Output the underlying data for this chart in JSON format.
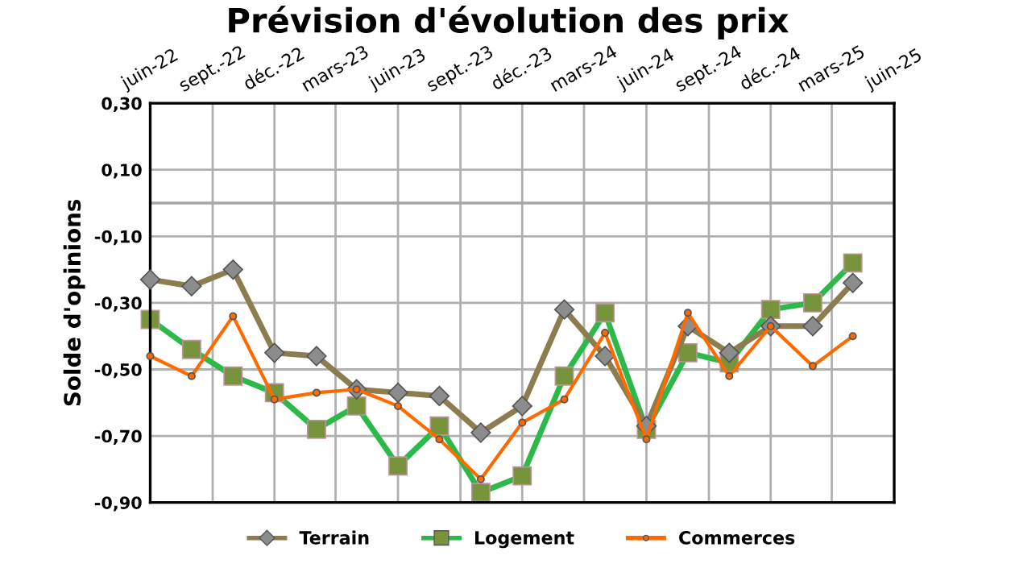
{
  "chart_data": {
    "type": "line",
    "title": "Prévision d'évolution des prix",
    "ylabel": "Solde d'opinions",
    "x": [
      "2022-06",
      "2022-08",
      "2022-10",
      "2022-12",
      "2023-02",
      "2023-04",
      "2023-06",
      "2023-08",
      "2023-10",
      "2023-12",
      "2024-02",
      "2024-04",
      "2024-06",
      "2024-08",
      "2024-10",
      "2024-12",
      "2025-02",
      "2025-04"
    ],
    "series": [
      {
        "name": "Terrain",
        "color": "#8b7d4f",
        "marker": "diamond",
        "values": [
          -0.23,
          -0.25,
          -0.2,
          -0.45,
          -0.46,
          -0.56,
          -0.57,
          -0.58,
          -0.69,
          -0.61,
          -0.32,
          -0.46,
          -0.67,
          -0.37,
          -0.45,
          -0.37,
          -0.37,
          -0.24
        ]
      },
      {
        "name": "Logement",
        "color": "#2db84a",
        "marker": "square",
        "values": [
          -0.35,
          -0.44,
          -0.52,
          -0.57,
          -0.68,
          -0.61,
          -0.79,
          -0.67,
          -0.87,
          -0.82,
          -0.52,
          -0.33,
          -0.68,
          -0.45,
          -0.48,
          -0.32,
          -0.3,
          -0.18
        ]
      },
      {
        "name": "Commerces",
        "color": "#ff6a00",
        "marker": "circle",
        "values": [
          -0.46,
          -0.52,
          -0.34,
          -0.59,
          -0.57,
          -0.56,
          -0.61,
          -0.71,
          -0.83,
          -0.66,
          -0.59,
          -0.39,
          -0.71,
          -0.33,
          -0.52,
          -0.37,
          -0.49,
          -0.4
        ]
      }
    ],
    "xlim": [
      "2022-06",
      "2025-06"
    ],
    "xticks": [
      {
        "value": "2022-06",
        "label": "juin-22"
      },
      {
        "value": "2022-09",
        "label": "sept.-22"
      },
      {
        "value": "2022-12",
        "label": "déc.-22"
      },
      {
        "value": "2023-03",
        "label": "mars-23"
      },
      {
        "value": "2023-06",
        "label": "juin-23"
      },
      {
        "value": "2023-09",
        "label": "sept.-23"
      },
      {
        "value": "2023-12",
        "label": "déc.-23"
      },
      {
        "value": "2024-03",
        "label": "mars-24"
      },
      {
        "value": "2024-06",
        "label": "juin-24"
      },
      {
        "value": "2024-09",
        "label": "sept.-24"
      },
      {
        "value": "2024-12",
        "label": "déc.-24"
      },
      {
        "value": "2025-03",
        "label": "mars-25"
      },
      {
        "value": "2025-06",
        "label": "juin-25"
      }
    ],
    "ylim": [
      -0.9,
      0.3
    ],
    "yticks": [
      {
        "value": -0.9,
        "label": "-0,90"
      },
      {
        "value": -0.7,
        "label": "-0,70"
      },
      {
        "value": -0.5,
        "label": "-0,50"
      },
      {
        "value": -0.3,
        "label": "-0,30"
      },
      {
        "value": -0.1,
        "label": "-0,10"
      },
      {
        "value": 0.1,
        "label": "0,10"
      },
      {
        "value": 0.3,
        "label": "0,30"
      }
    ],
    "ref_lines": [
      {
        "axis": "y",
        "value": 0,
        "label": null,
        "color": "#a6a6a6"
      }
    ],
    "grid": true,
    "legend": "bottom",
    "line_style": "solid"
  }
}
